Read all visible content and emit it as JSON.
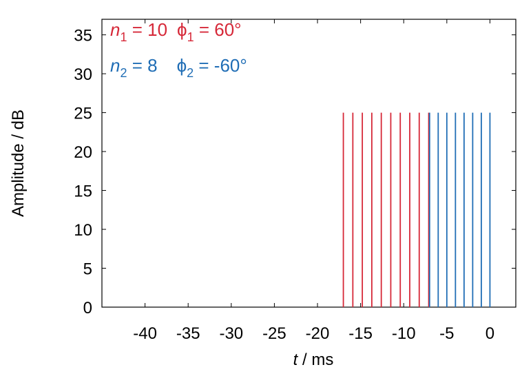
{
  "chart_data": {
    "type": "bar",
    "xlabel_var": "t",
    "xlabel_unit": " / ms",
    "ylabel": "Amplitude / dB",
    "xlim": [
      -45,
      3
    ],
    "ylim": [
      0,
      37
    ],
    "xticks": [
      -40,
      -35,
      -30,
      -25,
      -20,
      -15,
      -10,
      -5,
      0
    ],
    "yticks": [
      0,
      5,
      10,
      15,
      20,
      25,
      30,
      35
    ],
    "grid": false,
    "legend_position": "top-left",
    "series": [
      {
        "color": "#d62838",
        "legend": {
          "var": "n",
          "sub": "1",
          "eq": " = 10",
          "phi_sub": "1",
          "phi_eq": " = 60°"
        },
        "x": [
          -17.0,
          -15.9,
          -14.8,
          -13.7,
          -12.6,
          -11.5,
          -10.4,
          -9.3,
          -8.2,
          -7.1
        ],
        "values": [
          25,
          25,
          25,
          25,
          25,
          25,
          25,
          25,
          25,
          25
        ]
      },
      {
        "color": "#1f6db5",
        "legend": {
          "var": "n",
          "sub": "2",
          "eq": " = 8",
          "phi_sub": "2",
          "phi_eq": " = -60°"
        },
        "x": [
          -7.0,
          -6.0,
          -5.0,
          -4.0,
          -3.0,
          -2.0,
          -1.0,
          0.0
        ],
        "values": [
          25,
          25,
          25,
          25,
          25,
          25,
          25,
          25
        ]
      }
    ]
  }
}
